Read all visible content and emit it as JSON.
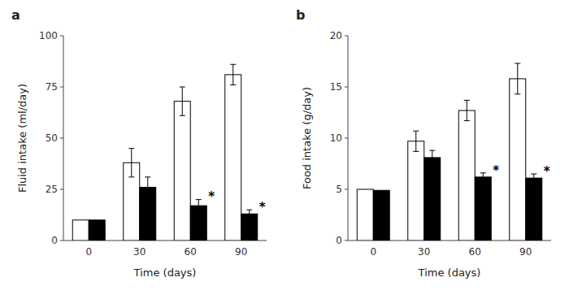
{
  "chart_data": [
    {
      "type": "bar",
      "title": "a",
      "xlabel": "Time (days)",
      "ylabel": "Fluid intake (ml/day)",
      "categories": [
        "0",
        "30",
        "60",
        "90"
      ],
      "series": [
        {
          "color": "#ffffff",
          "values": [
            10,
            38,
            68,
            81
          ],
          "errors": [
            0,
            7,
            7,
            5
          ]
        },
        {
          "color": "#000000",
          "values": [
            10,
            26,
            17,
            13
          ],
          "errors": [
            0,
            5,
            3,
            2
          ],
          "annotations": [
            {
              "category": "60",
              "text": "*"
            },
            {
              "category": "90",
              "text": "*"
            }
          ]
        }
      ],
      "ylim": [
        0,
        100
      ],
      "yticks": [
        0,
        25,
        50,
        75,
        100
      ],
      "grid": false
    },
    {
      "type": "bar",
      "title": "b",
      "xlabel": "Time (days)",
      "ylabel": "Food intake (g/day)",
      "categories": [
        "0",
        "30",
        "60",
        "90"
      ],
      "series": [
        {
          "color": "#ffffff",
          "values": [
            5.0,
            9.7,
            12.7,
            15.8
          ],
          "errors": [
            0,
            1.0,
            1.0,
            1.5
          ]
        },
        {
          "color": "#000000",
          "values": [
            4.9,
            8.1,
            6.2,
            6.1
          ],
          "errors": [
            0,
            0.7,
            0.4,
            0.4
          ],
          "annotations": [
            {
              "category": "60",
              "text": "*"
            },
            {
              "category": "90",
              "text": "*"
            }
          ]
        }
      ],
      "ylim": [
        0,
        20
      ],
      "yticks": [
        0,
        5,
        10,
        15,
        20
      ],
      "grid": false
    }
  ]
}
